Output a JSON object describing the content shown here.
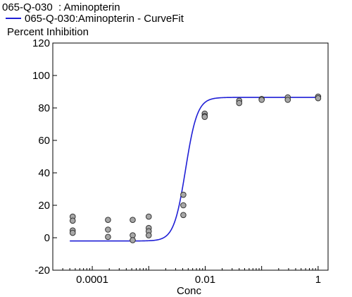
{
  "chart_data": {
    "type": "scatter",
    "title": "065-Q-030  : Aminopterin",
    "legend": "065-Q-030:Aminopterin - CurveFit",
    "ylabel": "Percent Inhibition",
    "xlabel": "Conc",
    "xscale": "log",
    "xlim": [
      2e-05,
      1.5
    ],
    "ylim": [
      -20,
      120
    ],
    "yticks": [
      -20,
      0,
      20,
      40,
      60,
      80,
      100,
      120
    ],
    "xticks": [
      0.0001,
      0.01,
      1
    ],
    "xtick_labels": [
      "0.0001",
      "0.01",
      "1"
    ],
    "points": [
      {
        "x": 4.5e-05,
        "y": 13
      },
      {
        "x": 4.5e-05,
        "y": 10.5
      },
      {
        "x": 4.5e-05,
        "y": 4.5
      },
      {
        "x": 4.5e-05,
        "y": 3
      },
      {
        "x": 0.00019,
        "y": 11
      },
      {
        "x": 0.00019,
        "y": 5
      },
      {
        "x": 0.00019,
        "y": 0.5
      },
      {
        "x": 0.00052,
        "y": 11
      },
      {
        "x": 0.00052,
        "y": 1.5
      },
      {
        "x": 0.00052,
        "y": -1.5
      },
      {
        "x": 0.001,
        "y": 13
      },
      {
        "x": 0.001,
        "y": 6
      },
      {
        "x": 0.001,
        "y": 4
      },
      {
        "x": 0.001,
        "y": 1.5
      },
      {
        "x": 0.0041,
        "y": 26.5
      },
      {
        "x": 0.0041,
        "y": 20
      },
      {
        "x": 0.0041,
        "y": 14
      },
      {
        "x": 0.0098,
        "y": 76.5
      },
      {
        "x": 0.0098,
        "y": 75
      },
      {
        "x": 0.0098,
        "y": 74.5
      },
      {
        "x": 0.04,
        "y": 84.5
      },
      {
        "x": 0.04,
        "y": 83
      },
      {
        "x": 0.1,
        "y": 85.5
      },
      {
        "x": 0.1,
        "y": 85
      },
      {
        "x": 0.29,
        "y": 86.5
      },
      {
        "x": 0.29,
        "y": 85
      },
      {
        "x": 1.0,
        "y": 87
      },
      {
        "x": 1.0,
        "y": 86
      }
    ],
    "curve": {
      "type": "4PL",
      "bottom": -2,
      "top": 86.5,
      "ec50": 0.0045,
      "hill": 4.2
    },
    "colors": {
      "curve": "#1f1fd6",
      "point_fill": "#a7a7a7",
      "point_stroke": "#333333"
    }
  }
}
